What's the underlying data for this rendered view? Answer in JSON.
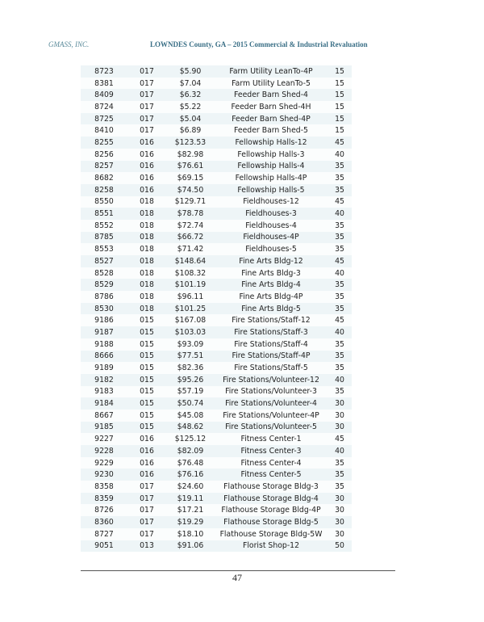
{
  "header": {
    "company": "GMASS, INC.",
    "title": "LOWNDES County, GA – 2015 Commercial & Industrial Revaluation"
  },
  "rows": [
    [
      "8723",
      "017",
      "$5.90",
      "Farm Utility LeanTo-4P",
      "15"
    ],
    [
      "8381",
      "017",
      "$7.04",
      "Farm Utility LeanTo-5",
      "15"
    ],
    [
      "8409",
      "017",
      "$6.32",
      "Feeder Barn Shed-4",
      "15"
    ],
    [
      "8724",
      "017",
      "$5.22",
      "Feeder Barn Shed-4H",
      "15"
    ],
    [
      "8725",
      "017",
      "$5.04",
      "Feeder Barn Shed-4P",
      "15"
    ],
    [
      "8410",
      "017",
      "$6.89",
      "Feeder Barn Shed-5",
      "15"
    ],
    [
      "8255",
      "016",
      "$123.53",
      "Fellowship Halls-12",
      "45"
    ],
    [
      "8256",
      "016",
      "$82.98",
      "Fellowship Halls-3",
      "40"
    ],
    [
      "8257",
      "016",
      "$76.61",
      "Fellowship Halls-4",
      "35"
    ],
    [
      "8682",
      "016",
      "$69.15",
      "Fellowship Halls-4P",
      "35"
    ],
    [
      "8258",
      "016",
      "$74.50",
      "Fellowship Halls-5",
      "35"
    ],
    [
      "8550",
      "018",
      "$129.71",
      "Fieldhouses-12",
      "45"
    ],
    [
      "8551",
      "018",
      "$78.78",
      "Fieldhouses-3",
      "40"
    ],
    [
      "8552",
      "018",
      "$72.74",
      "Fieldhouses-4",
      "35"
    ],
    [
      "8785",
      "018",
      "$66.72",
      "Fieldhouses-4P",
      "35"
    ],
    [
      "8553",
      "018",
      "$71.42",
      "Fieldhouses-5",
      "35"
    ],
    [
      "8527",
      "018",
      "$148.64",
      "Fine Arts Bldg-12",
      "45"
    ],
    [
      "8528",
      "018",
      "$108.32",
      "Fine Arts Bldg-3",
      "40"
    ],
    [
      "8529",
      "018",
      "$101.19",
      "Fine Arts Bldg-4",
      "35"
    ],
    [
      "8786",
      "018",
      "$96.11",
      "Fine Arts Bldg-4P",
      "35"
    ],
    [
      "8530",
      "018",
      "$101.25",
      "Fine Arts Bldg-5",
      "35"
    ],
    [
      "9186",
      "015",
      "$167.08",
      "Fire Stations/Staff-12",
      "45"
    ],
    [
      "9187",
      "015",
      "$103.03",
      "Fire Stations/Staff-3",
      "40"
    ],
    [
      "9188",
      "015",
      "$93.09",
      "Fire Stations/Staff-4",
      "35"
    ],
    [
      "8666",
      "015",
      "$77.51",
      "Fire Stations/Staff-4P",
      "35"
    ],
    [
      "9189",
      "015",
      "$82.36",
      "Fire Stations/Staff-5",
      "35"
    ],
    [
      "9182",
      "015",
      "$95.26",
      "Fire Stations/Volunteer-12",
      "40"
    ],
    [
      "9183",
      "015",
      "$57.19",
      "Fire Stations/Volunteer-3",
      "35"
    ],
    [
      "9184",
      "015",
      "$50.74",
      "Fire Stations/Volunteer-4",
      "30"
    ],
    [
      "8667",
      "015",
      "$45.08",
      "Fire Stations/Volunteer-4P",
      "30"
    ],
    [
      "9185",
      "015",
      "$48.62",
      "Fire Stations/Volunteer-5",
      "30"
    ],
    [
      "9227",
      "016",
      "$125.12",
      "Fitness Center-1",
      "45"
    ],
    [
      "9228",
      "016",
      "$82.09",
      "Fitness Center-3",
      "40"
    ],
    [
      "9229",
      "016",
      "$76.48",
      "Fitness Center-4",
      "35"
    ],
    [
      "9230",
      "016",
      "$76.16",
      "Fitness Center-5",
      "35"
    ],
    [
      "8358",
      "017",
      "$24.60",
      "Flathouse Storage Bldg-3",
      "35"
    ],
    [
      "8359",
      "017",
      "$19.11",
      "Flathouse Storage Bldg-4",
      "30"
    ],
    [
      "8726",
      "017",
      "$17.21",
      "Flathouse Storage Bldg-4P",
      "30"
    ],
    [
      "8360",
      "017",
      "$19.29",
      "Flathouse Storage Bldg-5",
      "30"
    ],
    [
      "8727",
      "017",
      "$18.10",
      "Flathouse Storage Bldg-5W",
      "30"
    ],
    [
      "9051",
      "013",
      "$91.06",
      "Florist Shop-12",
      "50"
    ]
  ],
  "footer": {
    "page_number": "47"
  }
}
